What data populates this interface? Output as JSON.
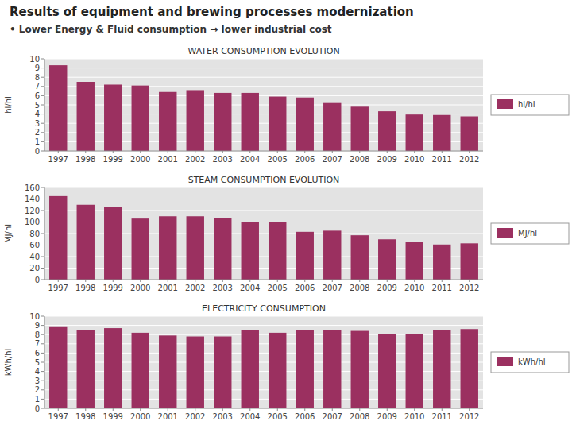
{
  "title": "Results of equipment and brewing processes modernization",
  "subtitle": "•  Lower Energy & Fluid consumption → lower industrial cost",
  "chart_data": [
    {
      "type": "bar",
      "title": "WATER CONSUMPTION EVOLUTION",
      "ylabel": "hl/hl",
      "categories": [
        "1997",
        "1998",
        "1999",
        "2000",
        "2001",
        "2002",
        "2003",
        "2004",
        "2005",
        "2006",
        "2007",
        "2008",
        "2009",
        "2010",
        "2011",
        "2012"
      ],
      "series": [
        {
          "name": "hl/hl",
          "color": "#9b3060",
          "values": [
            9.3,
            7.5,
            7.2,
            7.1,
            6.4,
            6.6,
            6.3,
            6.3,
            5.9,
            5.8,
            5.2,
            4.8,
            4.3,
            3.95,
            3.9,
            3.75
          ]
        }
      ],
      "ylim": [
        0,
        10
      ],
      "yticks": [
        0,
        1,
        2,
        3,
        4,
        5,
        6,
        7,
        8,
        9,
        10
      ],
      "grid": true,
      "legend": "right"
    },
    {
      "type": "bar",
      "title": "STEAM CONSUMPTION EVOLUTION",
      "ylabel": "MJ/hl",
      "categories": [
        "1997",
        "1998",
        "1999",
        "2000",
        "2001",
        "2002",
        "2003",
        "2004",
        "2005",
        "2006",
        "2007",
        "2008",
        "2009",
        "2010",
        "2011",
        "2012"
      ],
      "series": [
        {
          "name": "MJ/hl",
          "color": "#9b3060",
          "values": [
            145,
            130,
            126,
            106,
            110,
            110,
            107,
            100,
            100,
            83,
            85,
            77,
            70,
            65,
            61,
            63
          ]
        }
      ],
      "ylim": [
        0,
        160
      ],
      "yticks": [
        0,
        20,
        40,
        60,
        80,
        100,
        120,
        140,
        160
      ],
      "grid": true,
      "legend": "right"
    },
    {
      "type": "bar",
      "title": "ELECTRICITY CONSUMPTION",
      "ylabel": "kWh/hl",
      "categories": [
        "1997",
        "1998",
        "1999",
        "2000",
        "2001",
        "2002",
        "2003",
        "2004",
        "2005",
        "2006",
        "2007",
        "2008",
        "2009",
        "2010",
        "2011",
        "2012"
      ],
      "series": [
        {
          "name": "kWh/hl",
          "color": "#9b3060",
          "values": [
            8.9,
            8.5,
            8.7,
            8.2,
            7.9,
            7.8,
            7.8,
            8.5,
            8.2,
            8.5,
            8.5,
            8.4,
            8.1,
            8.1,
            8.5,
            8.6
          ]
        }
      ],
      "ylim": [
        0,
        10
      ],
      "yticks": [
        0,
        1,
        2,
        3,
        4,
        5,
        6,
        7,
        8,
        9,
        10
      ],
      "grid": true,
      "legend": "right"
    }
  ]
}
